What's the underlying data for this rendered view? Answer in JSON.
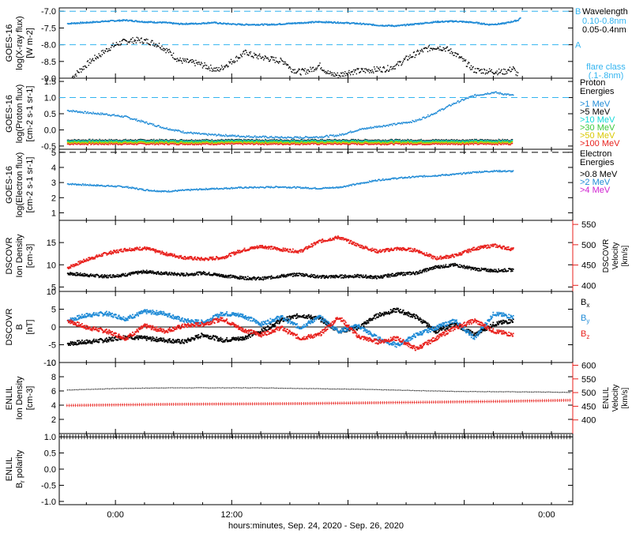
{
  "colors": {
    "blue": "#1e8ad6",
    "lightblue": "#32b4f0",
    "red": "#e8201c",
    "green": "#3cc83c",
    "cyan": "#10d8d8",
    "yellow": "#d8c800",
    "orange": "#f07800",
    "purple": "#d020d0",
    "black": "#000000"
  },
  "x_axis": {
    "label": "hours:minutes, Sep. 24, 2020 - Sep. 26, 2020",
    "ticks": [
      "0:00",
      "12:00",
      "0:00"
    ]
  },
  "chart_data": [
    {
      "type": "scatter",
      "panel": "xray",
      "ylabel": [
        "GOES-16",
        "log(X-ray flux)",
        "[W m-2]"
      ],
      "ylim": [
        -9.0,
        -6.9
      ],
      "yticks": [
        "-7.0",
        "-7.5",
        "-8.0",
        "-8.5",
        "-9.0"
      ],
      "reference_lines": [
        {
          "value": -7.0,
          "label": "B"
        },
        {
          "value": -8.0,
          "label": "A"
        }
      ],
      "legend_title": "Wavelength",
      "series": [
        {
          "name": "0.10-0.8nm",
          "color": "blue",
          "points": [
            [
              -5,
              -7.35
            ],
            [
              -3,
              -7.32
            ],
            [
              -1,
              -7.28
            ],
            [
              1,
              -7.25
            ],
            [
              3,
              -7.3
            ],
            [
              5,
              -7.32
            ],
            [
              6.5,
              -7.36
            ],
            [
              8.5,
              -7.35
            ],
            [
              10,
              -7.32
            ],
            [
              11,
              -7.35
            ],
            [
              13,
              -7.38
            ],
            [
              16,
              -7.38
            ],
            [
              19,
              -7.33
            ],
            [
              21,
              -7.3
            ],
            [
              23,
              -7.32
            ],
            [
              25,
              -7.35
            ],
            [
              27,
              -7.4
            ],
            [
              29,
              -7.42
            ],
            [
              31,
              -7.36
            ],
            [
              33,
              -7.3
            ],
            [
              35,
              -7.28
            ],
            [
              37,
              -7.32
            ],
            [
              38.5,
              -7.38
            ],
            [
              40,
              -7.35
            ],
            [
              41.5,
              -7.25
            ],
            [
              41.8,
              -7.15
            ]
          ]
        },
        {
          "name": "0.05-0.4nm",
          "color": "black",
          "points": [
            [
              -4.5,
              -8.95
            ],
            [
              -3.5,
              -8.7
            ],
            [
              -2.5,
              -8.45
            ],
            [
              -1.5,
              -8.25
            ],
            [
              -0.5,
              -8.05
            ],
            [
              0.5,
              -7.92
            ],
            [
              1.5,
              -7.86
            ],
            [
              2.5,
              -7.85
            ],
            [
              3.5,
              -7.9
            ],
            [
              4.5,
              -8.0
            ],
            [
              5.5,
              -8.2
            ],
            [
              6.5,
              -8.45
            ],
            [
              7.5,
              -8.5
            ],
            [
              8.5,
              -8.55
            ],
            [
              9.5,
              -8.65
            ],
            [
              10.5,
              -8.75
            ],
            [
              13.5,
              -8.2
            ],
            [
              14,
              -8.3
            ],
            [
              17.5,
              -8.5
            ],
            [
              18,
              -8.7
            ],
            [
              19,
              -8.8
            ],
            [
              20,
              -8.75
            ],
            [
              21,
              -8.6
            ],
            [
              22,
              -8.85
            ],
            [
              23,
              -8.9
            ],
            [
              24,
              -8.8
            ],
            [
              28,
              -8.7
            ],
            [
              29,
              -8.6
            ],
            [
              30,
              -8.4
            ],
            [
              31,
              -8.25
            ],
            [
              32,
              -8.12
            ],
            [
              33,
              -8.05
            ],
            [
              34,
              -8.1
            ],
            [
              35,
              -8.25
            ],
            [
              36,
              -8.5
            ],
            [
              37,
              -8.75
            ],
            [
              40,
              -8.8
            ],
            [
              41,
              -8.7
            ],
            [
              41.5,
              -8.9
            ]
          ]
        }
      ],
      "legend": [
        "0.10-0.8nm",
        "0.05-0.4nm"
      ],
      "annotation": "flare class (.1-.8nm)"
    },
    {
      "type": "line",
      "panel": "proton",
      "ylabel": [
        "GOES-16",
        "log(Proton flux)",
        "[cm-2 s-1 sr-1]"
      ],
      "ylim": [
        -0.6,
        1.6
      ],
      "yticks": [
        "1.5",
        "1.0",
        "0.5",
        "0.0",
        "-0.5"
      ],
      "reference_lines": [
        {
          "value": 1.0
        }
      ],
      "legend_title": "Proton Energies",
      "series": [
        {
          "name": ">1 MeV",
          "color": "blue",
          "x": [
            -5,
            -3,
            -1,
            1,
            3,
            5,
            7,
            9,
            11,
            13,
            15,
            17,
            19,
            21,
            23,
            25,
            27,
            29,
            31,
            33,
            35,
            37,
            39,
            41
          ],
          "values": [
            0.62,
            0.55,
            0.5,
            0.42,
            0.25,
            0.08,
            -0.05,
            -0.12,
            -0.15,
            -0.18,
            -0.2,
            -0.22,
            -0.22,
            -0.2,
            -0.15,
            0.02,
            0.12,
            0.2,
            0.3,
            0.55,
            0.85,
            1.08,
            1.18,
            1.08
          ]
        },
        {
          "name": ">5 MeV",
          "color": "black",
          "x": [
            -5,
            41
          ],
          "values": [
            -0.3,
            -0.3
          ]
        },
        {
          "name": ">10 MeV",
          "color": "cyan",
          "x": [
            -5,
            41
          ],
          "values": [
            -0.32,
            -0.32
          ]
        },
        {
          "name": ">30 MeV",
          "color": "green",
          "x": [
            -5,
            41
          ],
          "values": [
            -0.35,
            -0.35
          ]
        },
        {
          "name": ">50 MeV",
          "color": "yellow",
          "x": [
            -5,
            41
          ],
          "values": [
            -0.38,
            -0.38
          ]
        },
        {
          "name": ">100 MeV",
          "color": "red",
          "x": [
            -5,
            41
          ],
          "values": [
            -0.42,
            -0.42
          ]
        }
      ]
    },
    {
      "type": "line",
      "panel": "electron",
      "ylabel": [
        "GOES-16",
        "log(Electron flux)",
        "[cm-2 s-1 sr-1]"
      ],
      "ylim": [
        0.5,
        5.2
      ],
      "yticks": [
        "5",
        "4",
        "3",
        "2",
        "1"
      ],
      "reference_lines": [
        {
          "value": 5.0
        }
      ],
      "legend_title": "Electron Energies",
      "series": [
        {
          "name": ">0.8 MeV",
          "color": "black",
          "x": [],
          "values": []
        },
        {
          "name": ">2 MeV",
          "color": "blue",
          "x": [
            -5,
            -3,
            -1,
            1,
            3,
            5,
            7,
            9,
            11,
            13,
            15,
            17,
            19,
            21,
            23,
            25,
            27,
            29,
            31,
            33,
            35,
            37,
            39,
            41
          ],
          "values": [
            2.95,
            2.88,
            2.82,
            2.75,
            2.55,
            2.45,
            2.52,
            2.6,
            2.65,
            2.7,
            2.72,
            2.75,
            2.7,
            2.65,
            2.72,
            2.95,
            3.2,
            3.32,
            3.42,
            3.5,
            3.58,
            3.72,
            3.8,
            3.78
          ]
        },
        {
          "name": ">4 MeV",
          "color": "purple",
          "x": [],
          "values": []
        }
      ]
    },
    {
      "type": "scatter",
      "panel": "dscovr-plasma",
      "ylabel": [
        "DSCOVR",
        "Ion Density",
        "[cm-3]"
      ],
      "ylim": [
        4,
        20
      ],
      "yticks": [
        "15",
        "10",
        "5"
      ],
      "y2label": [
        "DSCOVR",
        "Velocity",
        "[km/s]"
      ],
      "y2lim": [
        385,
        560
      ],
      "y2ticks": [
        "550",
        "500",
        "450",
        "400"
      ],
      "series": [
        {
          "name": "Ion Density",
          "color": "black",
          "axis": "left",
          "x": [
            -5,
            -3,
            -1,
            1,
            3,
            5,
            7,
            9,
            11,
            13,
            15,
            17,
            19,
            21,
            23,
            25,
            27,
            29,
            31,
            33,
            35,
            37,
            39,
            41
          ],
          "values": [
            8.2,
            7.8,
            7.5,
            7.9,
            8.6,
            8.2,
            7.9,
            8.3,
            7.7,
            7.2,
            7.0,
            7.6,
            8.0,
            7.4,
            7.5,
            7.6,
            7.3,
            8.0,
            8.3,
            9.6,
            10.1,
            9.2,
            8.8,
            9.0
          ]
        },
        {
          "name": "Velocity",
          "color": "red",
          "axis": "right",
          "x": [
            -5,
            -3,
            -1,
            1,
            3,
            5,
            7,
            9,
            11,
            13,
            15,
            17,
            19,
            21,
            23,
            25,
            27,
            29,
            31,
            33,
            35,
            37,
            39,
            41
          ],
          "values": [
            445,
            465,
            480,
            490,
            493,
            480,
            470,
            466,
            470,
            488,
            498,
            490,
            485,
            510,
            520,
            500,
            485,
            492,
            488,
            468,
            475,
            492,
            500,
            490
          ]
        }
      ]
    },
    {
      "type": "scatter",
      "panel": "dscovr-mag",
      "ylabel": [
        "DSCOVR",
        "B",
        "[nT]"
      ],
      "ylim": [
        -10,
        10
      ],
      "yticks": [
        "10",
        "5",
        "0",
        "-5",
        "-10"
      ],
      "series": [
        {
          "name": "Bx",
          "color": "black",
          "x": [
            -5,
            -3,
            -1,
            1,
            3,
            5,
            7,
            9,
            11,
            13,
            15,
            17,
            19,
            21,
            23,
            25,
            27,
            29,
            31,
            33,
            35,
            37,
            39,
            41
          ],
          "values": [
            -4.5,
            -4,
            -3.5,
            -2.5,
            -3,
            -3.5,
            -4,
            -2,
            -3.5,
            -3,
            -1,
            2,
            3.5,
            2.5,
            -1,
            0,
            3.5,
            5,
            3,
            -1,
            1,
            -2,
            1,
            2
          ]
        },
        {
          "name": "By",
          "color": "blue",
          "x": [
            -5,
            -3,
            -1,
            1,
            3,
            5,
            7,
            9,
            11,
            13,
            15,
            17,
            19,
            21,
            23,
            25,
            27,
            29,
            31,
            33,
            35,
            37,
            39,
            41
          ],
          "values": [
            2,
            3.5,
            4,
            2.5,
            4.5,
            4,
            2,
            1.5,
            4,
            3.5,
            1,
            3,
            0,
            3,
            -1,
            0.5,
            -3,
            -5,
            -2,
            0,
            2,
            -3,
            4,
            3
          ]
        },
        {
          "name": "Bz",
          "color": "red",
          "x": [
            -5,
            -3,
            -1,
            1,
            3,
            5,
            7,
            9,
            11,
            13,
            15,
            17,
            19,
            21,
            23,
            25,
            27,
            29,
            31,
            33,
            35,
            37,
            39,
            41
          ],
          "values": [
            2,
            0,
            -1,
            -3,
            0.5,
            -1,
            0.5,
            1,
            2.5,
            -0.5,
            -2,
            0,
            -3,
            -2,
            3,
            -2.5,
            -4,
            -3,
            -6,
            -3,
            0,
            2,
            -1,
            -2
          ]
        }
      ],
      "legend": [
        "Bx",
        "By",
        "Bz"
      ]
    },
    {
      "type": "line",
      "panel": "enlil-plasma",
      "ylabel": [
        "ENLIL",
        "Ion Density",
        "[cm-3]"
      ],
      "ylim": [
        0,
        10
      ],
      "yticks": [
        "10",
        "8",
        "6",
        "4",
        "2"
      ],
      "y2label": [
        "ENLIL",
        "Velocity",
        "[km/s]"
      ],
      "y2lim": [
        350,
        610
      ],
      "y2ticks": [
        "600",
        "550",
        "500",
        "450",
        "400"
      ],
      "series": [
        {
          "name": "Ion Density",
          "color": "black",
          "axis": "left",
          "x": [
            -5,
            0,
            5,
            10,
            15,
            20,
            25,
            30,
            35,
            40,
            45,
            47
          ],
          "values": [
            6.2,
            6.4,
            6.5,
            6.5,
            6.5,
            6.4,
            6.3,
            6.15,
            6.0,
            5.95,
            5.9,
            5.85
          ]
        },
        {
          "name": "Velocity",
          "color": "red",
          "axis": "right",
          "x": [
            -5,
            0,
            5,
            10,
            15,
            20,
            25,
            30,
            35,
            40,
            45,
            47
          ],
          "values": [
            453,
            455,
            457,
            458,
            459,
            460,
            462,
            464,
            466,
            468,
            471,
            472
          ]
        }
      ]
    },
    {
      "type": "line",
      "panel": "enlil-polarity",
      "ylabel": [
        "ENLIL",
        "Br polarity"
      ],
      "ylim": [
        -1.1,
        1.1
      ],
      "yticks": [
        "1.0",
        "0.5",
        "0.0",
        "-0.5",
        "-1.0"
      ],
      "series": [
        {
          "name": "Br polarity",
          "color": "black",
          "x": [
            -5,
            47
          ],
          "values": [
            1.0,
            1.0
          ]
        }
      ]
    }
  ]
}
